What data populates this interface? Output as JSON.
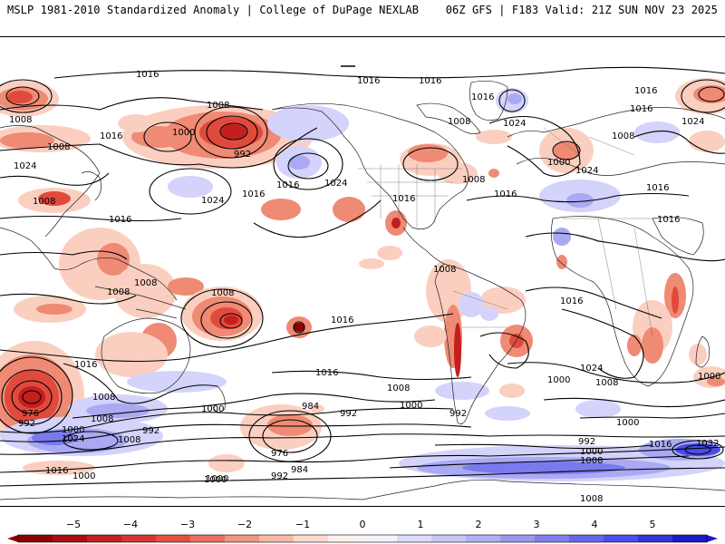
{
  "header": {
    "title_left": "MSLP 1981-2010 Standardized Anomaly | College of DuPage NEXLAB",
    "title_right": "06Z GFS | F183 Valid: 21Z SUN NOV 23 2025"
  },
  "colors": {
    "neg5": "#8b0000",
    "neg4": "#c41e1e",
    "neg3": "#e04a3c",
    "neg2": "#ef8a74",
    "neg1": "#fbcfc0",
    "zero": "#ffffff",
    "pos1": "#d3d3fb",
    "pos2": "#a9a9f4",
    "pos3": "#7a7aee",
    "pos4": "#4b4be8",
    "pos5": "#1a1ac8",
    "contour": "#000000",
    "coast": "#222222"
  },
  "isobar_labels": [
    {
      "text": "1016",
      "id": "a"
    },
    {
      "text": "1016",
      "id": "b"
    },
    {
      "text": "1016",
      "id": "c"
    },
    {
      "text": "1016",
      "id": "d"
    },
    {
      "text": "1008",
      "id": "e"
    },
    {
      "text": "1008",
      "id": "f"
    },
    {
      "text": "1000",
      "id": "g"
    },
    {
      "text": "992",
      "id": "h"
    },
    {
      "text": "1024",
      "id": "i"
    },
    {
      "text": "1016",
      "id": "j"
    },
    {
      "text": "1024",
      "id": "k"
    },
    {
      "text": "1016",
      "id": "l"
    },
    {
      "text": "1008",
      "id": "m"
    },
    {
      "text": "1024",
      "id": "n"
    },
    {
      "text": "1016",
      "id": "o"
    },
    {
      "text": "1008",
      "id": "p"
    },
    {
      "text": "1016",
      "id": "q"
    },
    {
      "text": "1016",
      "id": "r"
    },
    {
      "text": "1024",
      "id": "s"
    },
    {
      "text": "1008",
      "id": "t"
    },
    {
      "text": "1000",
      "id": "u"
    },
    {
      "text": "1024",
      "id": "v"
    },
    {
      "text": "1016",
      "id": "w"
    },
    {
      "text": "1016",
      "id": "x"
    },
    {
      "text": "1008",
      "id": "y"
    },
    {
      "text": "1024",
      "id": "z"
    },
    {
      "text": "1016",
      "id": "aa"
    },
    {
      "text": "1008",
      "id": "ab"
    },
    {
      "text": "1008",
      "id": "ac"
    },
    {
      "text": "1008",
      "id": "ad"
    },
    {
      "text": "1008",
      "id": "ae"
    },
    {
      "text": "1016",
      "id": "af"
    },
    {
      "text": "1008",
      "id": "ag"
    },
    {
      "text": "1016",
      "id": "ah"
    },
    {
      "text": "1016",
      "id": "ai"
    },
    {
      "text": "1024",
      "id": "aj"
    },
    {
      "text": "1016",
      "id": "ak"
    },
    {
      "text": "1016",
      "id": "al"
    },
    {
      "text": "1016",
      "id": "am"
    },
    {
      "text": "1008",
      "id": "an"
    },
    {
      "text": "1008",
      "id": "ao"
    },
    {
      "text": "1000",
      "id": "ap"
    },
    {
      "text": "1008",
      "id": "aq"
    },
    {
      "text": "1000",
      "id": "ar"
    },
    {
      "text": "976",
      "id": "as"
    },
    {
      "text": "992",
      "id": "at"
    },
    {
      "text": "1000",
      "id": "au"
    },
    {
      "text": "1024",
      "id": "av"
    },
    {
      "text": "1008",
      "id": "aw"
    },
    {
      "text": "992",
      "id": "ax"
    },
    {
      "text": "1000",
      "id": "ay"
    },
    {
      "text": "984",
      "id": "az"
    },
    {
      "text": "992",
      "id": "ba"
    },
    {
      "text": "976",
      "id": "bb"
    },
    {
      "text": "984",
      "id": "bc"
    },
    {
      "text": "992",
      "id": "bd"
    },
    {
      "text": "1016",
      "id": "be"
    },
    {
      "text": "1000",
      "id": "bf"
    },
    {
      "text": "1000",
      "id": "bg"
    },
    {
      "text": "1008",
      "id": "bh"
    },
    {
      "text": "1000",
      "id": "bi"
    },
    {
      "text": "992",
      "id": "bj"
    },
    {
      "text": "992",
      "id": "bk"
    },
    {
      "text": "1000",
      "id": "bl"
    },
    {
      "text": "1008",
      "id": "bm"
    },
    {
      "text": "1016",
      "id": "bn"
    },
    {
      "text": "1032",
      "id": "bo"
    },
    {
      "text": "1000",
      "id": "bp"
    },
    {
      "text": "1008",
      "id": "bq"
    },
    {
      "text": "1000",
      "id": "br"
    }
  ],
  "colorbar": {
    "ticks": [
      "−5",
      "−4",
      "−3",
      "−2",
      "−1",
      "0",
      "1",
      "2",
      "3",
      "4",
      "5"
    ]
  }
}
